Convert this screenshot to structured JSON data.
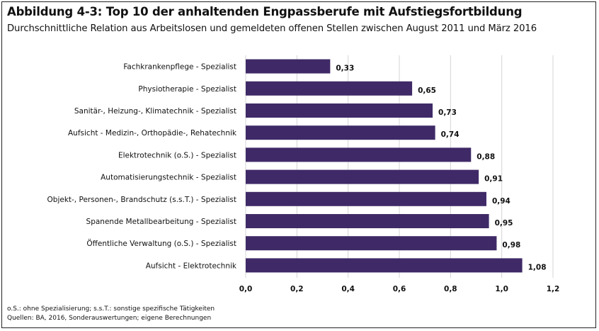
{
  "chart_data": {
    "type": "bar",
    "orientation": "horizontal",
    "title": "Abbildung 4-3: Top 10 der anhaltenden Engpassberufe mit Aufstiegsfortbildung",
    "subtitle": "Durchschnittliche Relation aus Arbeitslosen und gemeldeten offenen Stellen zwischen August 2011 und März 2016",
    "categories": [
      "Fachkrankenpflege - Spezialist",
      "Physiotherapie - Spezialist",
      "Sanitär-, Heizung-, Klimatechnik - Spezialist",
      "Aufsicht - Medizin-, Orthopädie-, Rehatechnik",
      "Elektrotechnik (o.S.) - Spezialist",
      "Automatisierungstechnik - Spezialist",
      "Objekt-, Personen-, Brandschutz (s.s.T.) - Spezialist",
      "Spanende Metallbearbeitung - Spezialist",
      "Öffentliche Verwaltung (o.S.) - Spezialist",
      "Aufsicht - Elektrotechnik"
    ],
    "values": [
      0.33,
      0.65,
      0.73,
      0.74,
      0.88,
      0.91,
      0.94,
      0.95,
      0.98,
      1.08
    ],
    "value_labels": [
      "0,33",
      "0,65",
      "0,73",
      "0,74",
      "0,88",
      "0,91",
      "0,94",
      "0,95",
      "0,98",
      "1,08"
    ],
    "xlim": [
      0,
      1.2
    ],
    "xticks": [
      0,
      0.2,
      0.4,
      0.6,
      0.8,
      1.0,
      1.2
    ],
    "xtick_labels": [
      "0,0",
      "0,2",
      "0,4",
      "0,6",
      "0,8",
      "1,0",
      "1,2"
    ],
    "grid": "vertical",
    "bar_color": "#3f2a67",
    "grid_color": "#d4d4d4",
    "footnote": "o.S.: ohne Spezialisierung; s.s.T.: sonstige spezifische Tätigkeiten",
    "source": "Quellen: BA, 2016, Sonderauswertungen; eigene Berechnungen"
  }
}
